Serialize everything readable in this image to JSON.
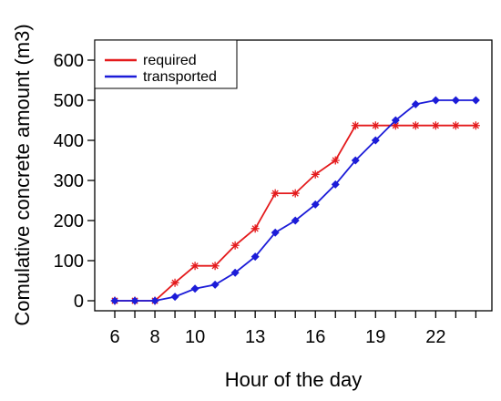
{
  "chart_data": {
    "type": "line",
    "xlabel": "Hour of the day",
    "ylabel": "Comulative concrete amount (m3)",
    "xlim": [
      5,
      24.8
    ],
    "ylim": [
      -25,
      650
    ],
    "x_ticks": [
      6,
      8,
      10,
      13,
      16,
      19,
      22
    ],
    "y_ticks": [
      0,
      100,
      200,
      300,
      400,
      500,
      600
    ],
    "grid": false,
    "legend": "top-left",
    "x": [
      6,
      7,
      8,
      9,
      10,
      11,
      12,
      13,
      14,
      15,
      16,
      17,
      18,
      19,
      20,
      21,
      22,
      23,
      24
    ],
    "series": [
      {
        "name": "required",
        "color": "#e41a1c",
        "marker": "star",
        "values": [
          0,
          0,
          0,
          45,
          87,
          87,
          138,
          180,
          268,
          268,
          315,
          350,
          437,
          437,
          437,
          437,
          437,
          437,
          437
        ]
      },
      {
        "name": "transported",
        "color": "#1c1cd8",
        "marker": "diamond",
        "values": [
          0,
          0,
          0,
          10,
          30,
          40,
          70,
          110,
          170,
          200,
          240,
          290,
          350,
          400,
          450,
          490,
          500,
          500,
          500
        ]
      }
    ]
  }
}
